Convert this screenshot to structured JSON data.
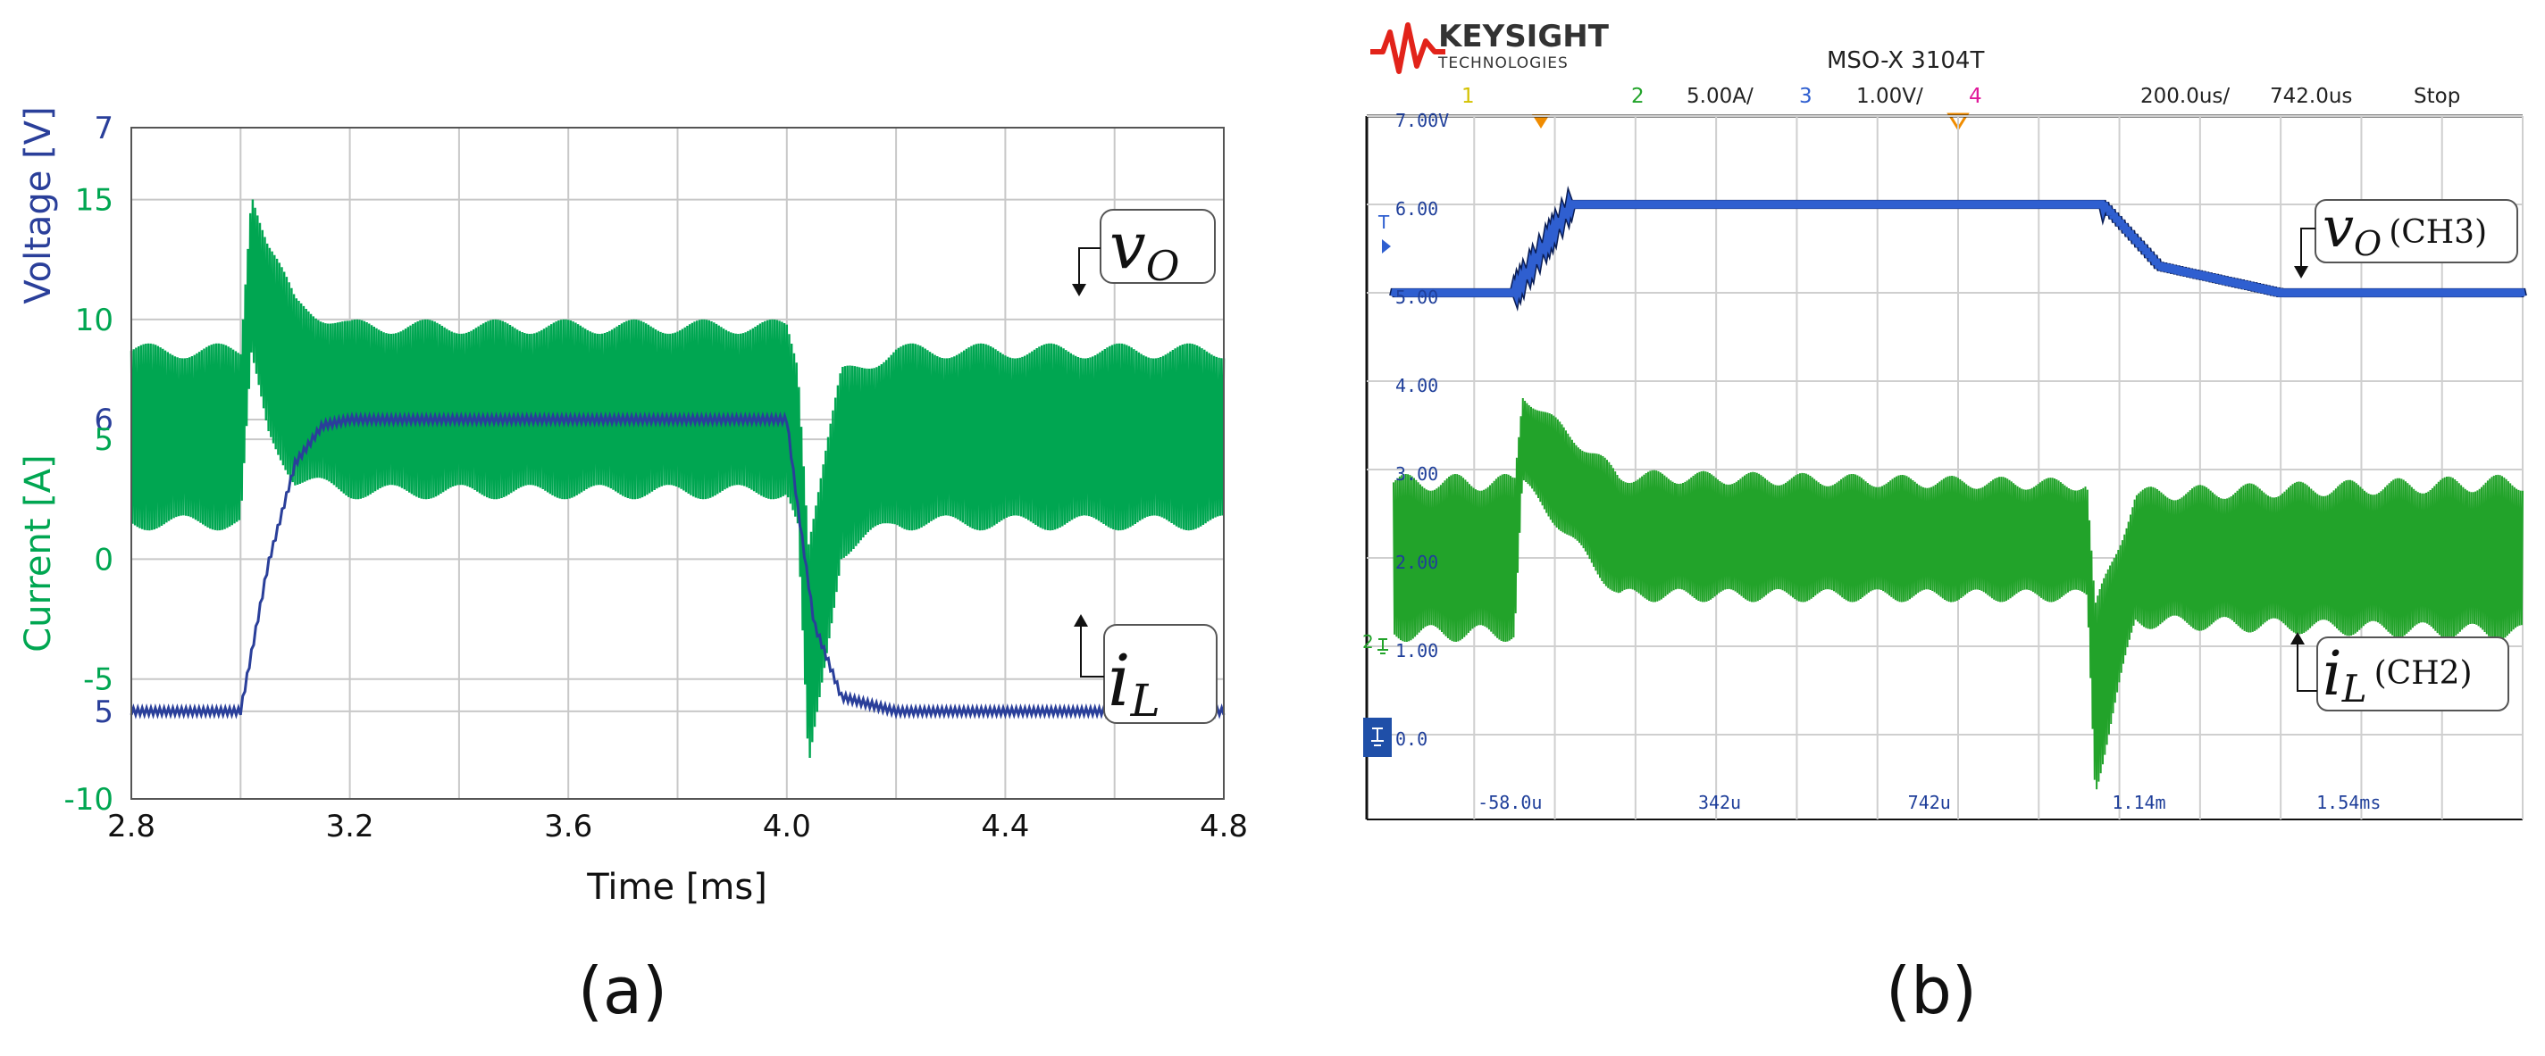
{
  "panel_a": {
    "caption": "(a)",
    "ylabel_top": "Voltage [V]",
    "ylabel_bottom": "Current [A]",
    "xlabel": "Time [ms]",
    "vo_label": "v",
    "vo_sub": "O",
    "il_label": "i",
    "il_sub": "L",
    "x_ticks": [
      "2.8",
      "3.2",
      "3.6",
      "4.0",
      "4.4",
      "4.8"
    ],
    "v_ticks": [
      "5",
      "6",
      "7"
    ],
    "i_ticks": [
      "-10",
      "-5",
      "0",
      "5",
      "10",
      "15"
    ]
  },
  "panel_b": {
    "caption": "(b)",
    "brand": "KEYSIGHT",
    "brand_sub": "TECHNOLOGIES",
    "model": "MSO-X 3104T",
    "ch1": "1",
    "ch2": "2",
    "ch2_scale": "5.00A/",
    "ch3": "3",
    "ch3_scale": "1.00V/",
    "ch4": "4",
    "timebase": "200.0us/",
    "delay": "742.0us",
    "run_state": "Stop",
    "y_grid_labels": [
      "7.00V",
      "6.00",
      "5.00",
      "4.00",
      "3.00",
      "2.00",
      "1.00",
      "0.0"
    ],
    "x_grid_labels": [
      "-58.0u",
      "342u",
      "742u",
      "1.14m",
      "1.54ms"
    ],
    "vo_label": "v",
    "vo_sub": "O",
    "vo_ch": "(CH3)",
    "il_label": "i",
    "il_sub": "L",
    "il_ch": "(CH2)",
    "trig_marker": "T",
    "ch2_ground_marker": "2"
  },
  "colors": {
    "voltage": "#2a3f9a",
    "current": "#00a651",
    "scope_voltage": "#2f5fd0",
    "scope_current": "#22a32a",
    "grid": "#c8c8c8",
    "scope_grid": "#cfcfcf",
    "keysight_red": "#e2231a"
  },
  "chart_data": [
    {
      "type": "line",
      "panel": "a",
      "xlabel": "Time [ms]",
      "xlim": [
        2.8,
        4.8
      ],
      "axes": [
        {
          "ylabel": "Voltage [V]",
          "ylim": [
            4.7,
            7
          ]
        },
        {
          "ylabel": "Current [A]",
          "ylim": [
            -10,
            18
          ]
        }
      ],
      "grid": true,
      "series": [
        {
          "name": "v_O",
          "axis": 0,
          "x": [
            2.8,
            3.0,
            3.02,
            3.05,
            3.1,
            3.15,
            3.2,
            4.0,
            4.02,
            4.05,
            4.1,
            4.2,
            4.8
          ],
          "y": [
            5.0,
            5.0,
            5.2,
            5.5,
            5.85,
            5.98,
            6.0,
            6.0,
            5.7,
            5.3,
            5.05,
            5.0,
            5.0
          ]
        },
        {
          "name": "i_L envelope upper",
          "axis": 1,
          "x": [
            2.8,
            3.0,
            3.02,
            3.05,
            3.1,
            3.2,
            4.0,
            4.02,
            4.04,
            4.1,
            4.2,
            4.8
          ],
          "y": [
            9.0,
            9.0,
            15.8,
            13.5,
            11.0,
            10.0,
            10.0,
            8.5,
            1.5,
            8.0,
            9.0,
            9.0
          ]
        },
        {
          "name": "i_L envelope lower",
          "axis": 1,
          "x": [
            2.8,
            3.0,
            3.02,
            3.05,
            3.1,
            3.2,
            4.0,
            4.02,
            4.04,
            4.1,
            4.2,
            4.8
          ],
          "y": [
            1.2,
            1.2,
            8.0,
            5.0,
            3.0,
            2.5,
            2.5,
            1.0,
            -9.5,
            0.0,
            1.2,
            1.2
          ]
        }
      ]
    },
    {
      "type": "line",
      "panel": "b",
      "grid": true,
      "x_grid_labels": [
        "-58.0u",
        "342u",
        "742u",
        "1.14m",
        "1.54ms"
      ],
      "series": [
        {
          "name": "v_O (CH3)",
          "axis": "CH3 1.00V/div",
          "x_div": [
            0,
            1.5,
            2.2,
            8.8,
            9.5,
            11,
            14
          ],
          "y_div": [
            5.0,
            5.0,
            6.0,
            6.0,
            5.3,
            5.0,
            5.0
          ]
        },
        {
          "name": "i_L (CH2) envelope upper",
          "axis": "CH2 5.00A/div",
          "x_div": [
            0,
            1.5,
            1.6,
            2.8,
            8.6,
            8.7,
            9.2,
            14
          ],
          "y_div": [
            2.95,
            2.95,
            3.9,
            3.0,
            2.9,
            1.5,
            2.8,
            2.95
          ]
        },
        {
          "name": "i_L (CH2) envelope lower",
          "axis": "CH2 5.00A/div",
          "x_div": [
            0,
            1.5,
            1.6,
            2.8,
            8.6,
            8.7,
            9.2,
            14
          ],
          "y_div": [
            1.05,
            1.05,
            2.8,
            1.5,
            1.5,
            -0.7,
            1.2,
            1.05
          ]
        }
      ]
    }
  ]
}
